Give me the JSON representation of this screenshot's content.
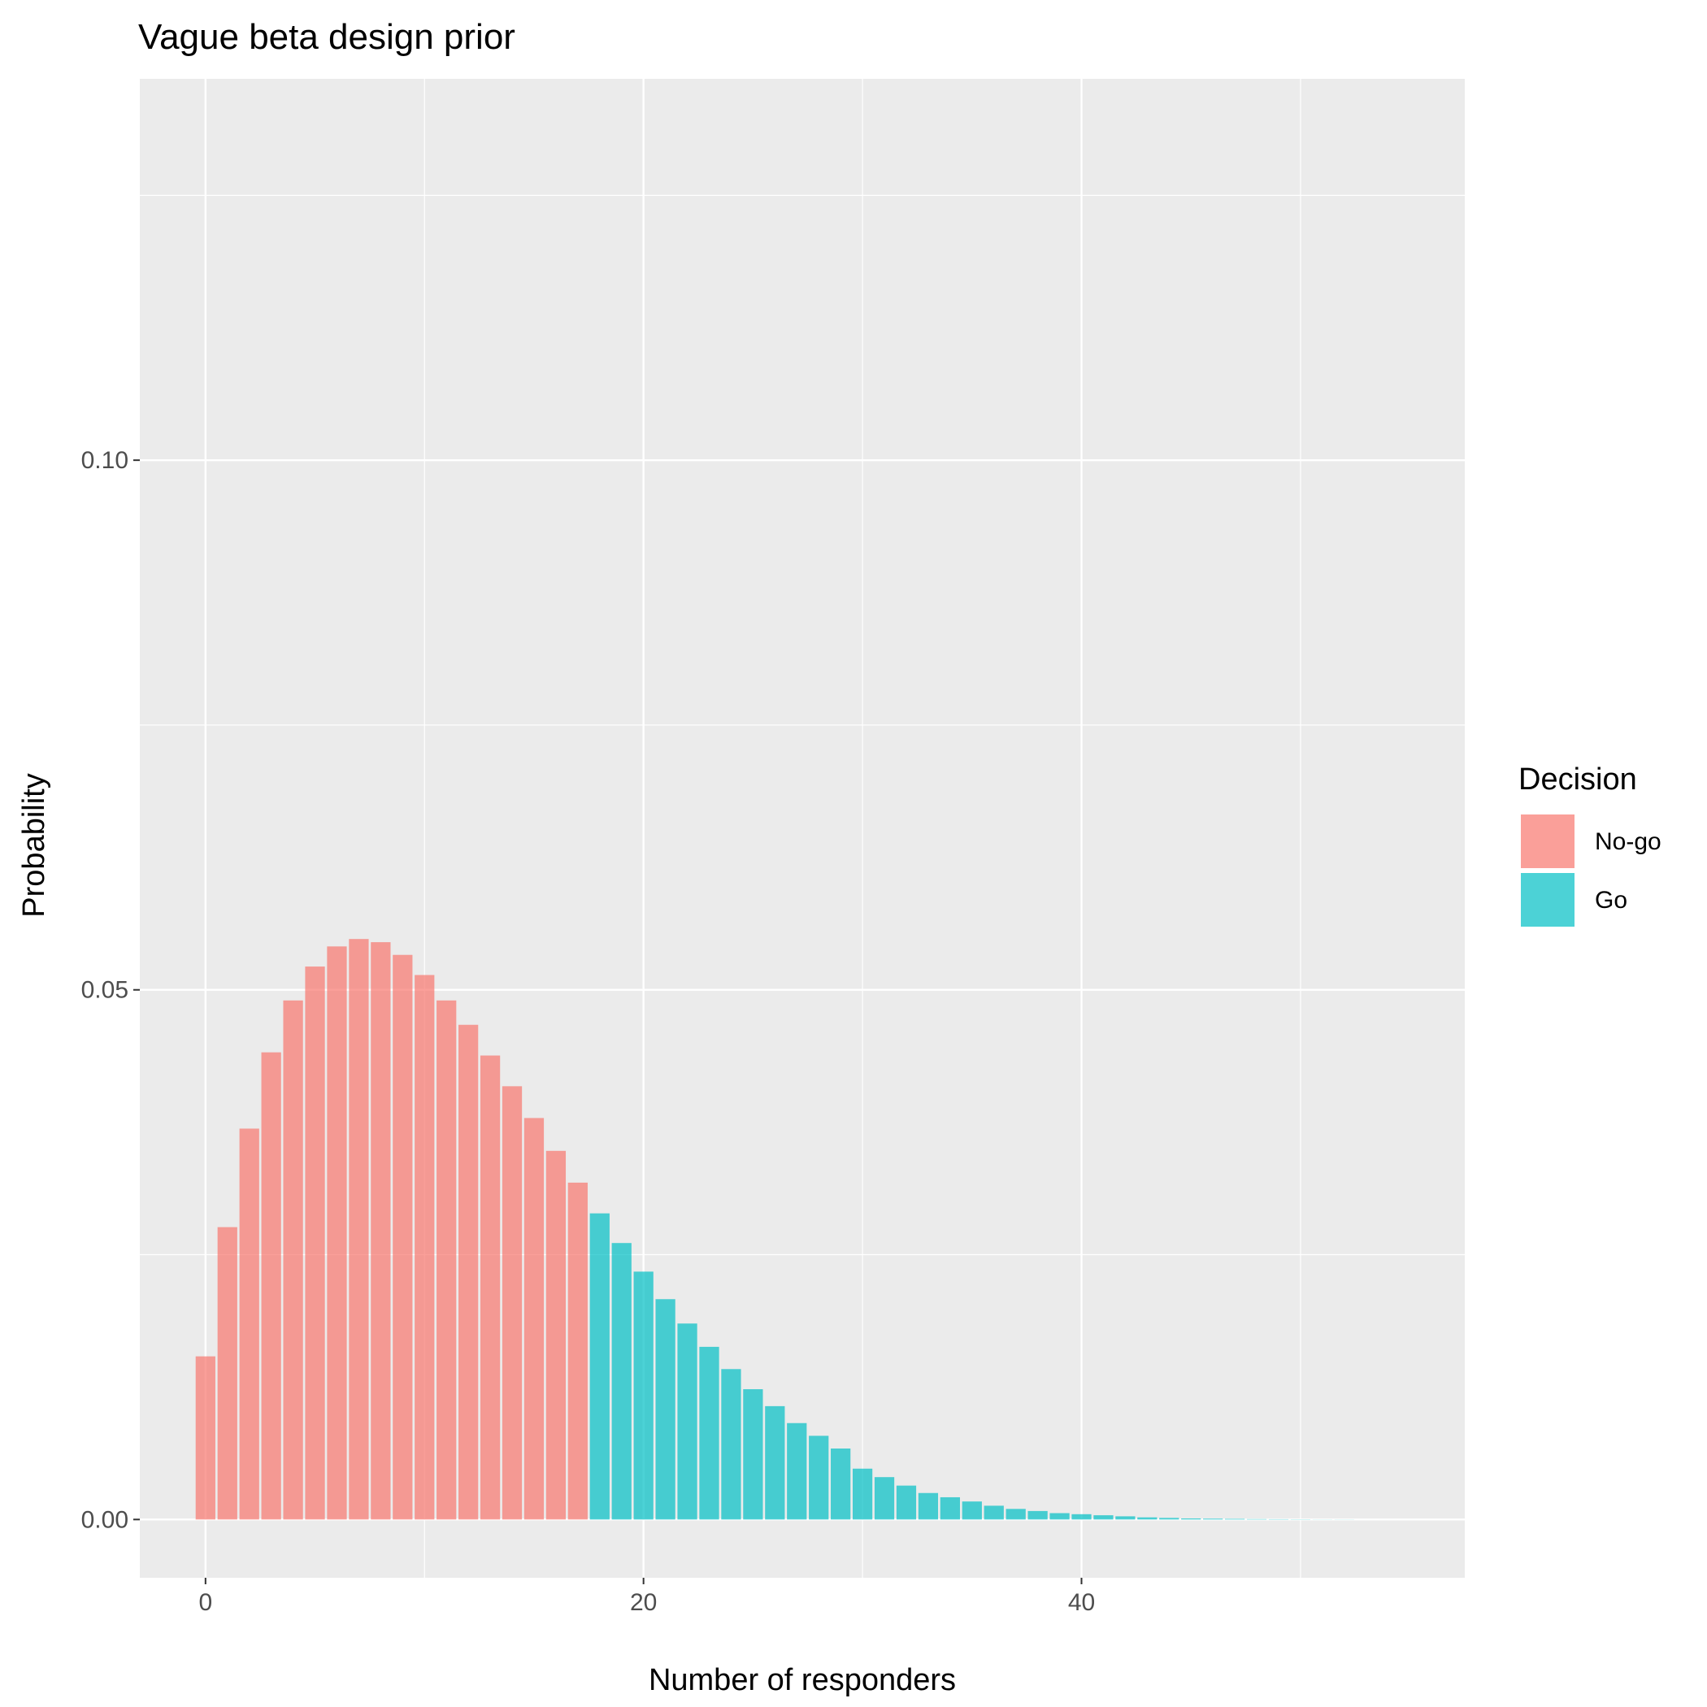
{
  "chart_data": {
    "type": "bar",
    "title": "Vague beta design prior",
    "xlabel": "Number of responders",
    "ylabel": "Probability",
    "xlim": [
      -3,
      57.5
    ],
    "ylim": [
      -0.0055,
      0.136
    ],
    "x_ticks": [
      0,
      20,
      40
    ],
    "x_tick_labels": [
      "0",
      "20",
      "40"
    ],
    "y_ticks": [
      0.0,
      0.05,
      0.1
    ],
    "y_tick_labels": [
      "0.00",
      "0.05",
      "0.10"
    ],
    "grid": true,
    "legend": {
      "title": "Decision",
      "position": "right",
      "entries": [
        {
          "label": "No-go",
          "color": "#F8766D"
        },
        {
          "label": "Go",
          "color": "#00BFC4"
        }
      ]
    },
    "series": [
      {
        "name": "No-go",
        "color": "#F8766D",
        "x": [
          0,
          1,
          2,
          3,
          4,
          5,
          6,
          7,
          8,
          9,
          10,
          11,
          12,
          13,
          14,
          15,
          16,
          17
        ],
        "values": [
          0.0154,
          0.0276,
          0.0369,
          0.0441,
          0.049,
          0.0522,
          0.0541,
          0.0548,
          0.0545,
          0.0533,
          0.0514,
          0.049,
          0.0467,
          0.0438,
          0.0409,
          0.0379,
          0.0348,
          0.0318
        ]
      },
      {
        "name": "Go",
        "color": "#00BFC4",
        "x": [
          18,
          19,
          20,
          21,
          22,
          23,
          24,
          25,
          26,
          27,
          28,
          29,
          30,
          31,
          32,
          33,
          34,
          35,
          36,
          37,
          38,
          39,
          40,
          41,
          42,
          43,
          44,
          45,
          46,
          47,
          48,
          49,
          50,
          51,
          52,
          53,
          54,
          55
        ],
        "values": [
          0.0289,
          0.0261,
          0.0234,
          0.0208,
          0.0185,
          0.0163,
          0.0142,
          0.0123,
          0.0107,
          0.0091,
          0.0079,
          0.0067,
          0.0048,
          0.004,
          0.0032,
          0.0025,
          0.0021,
          0.0017,
          0.0013,
          0.001,
          0.0008,
          0.0006,
          0.0005,
          0.0004,
          0.0003,
          0.0002,
          0.00015,
          0.0001,
          8e-05,
          6e-05,
          4e-05,
          3e-05,
          2e-05,
          1e-05,
          1e-05,
          0.0,
          0.0,
          0.0
        ]
      }
    ]
  }
}
